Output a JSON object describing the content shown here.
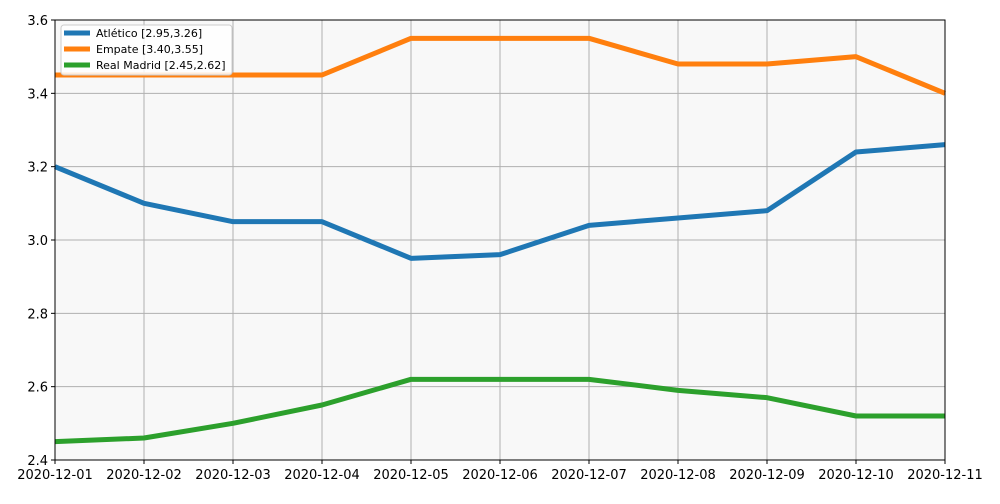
{
  "chart_data": {
    "type": "line",
    "title": "",
    "xlabel": "",
    "ylabel": "",
    "x": [
      "2020-12-01",
      "2020-12-02",
      "2020-12-03",
      "2020-12-04",
      "2020-12-05",
      "2020-12-06",
      "2020-12-07",
      "2020-12-08",
      "2020-12-09",
      "2020-12-10",
      "2020-12-11"
    ],
    "ylim": [
      2.4,
      3.6
    ],
    "yticks": [
      "2.4",
      "2.6",
      "2.8",
      "3.0",
      "3.2",
      "3.4",
      "3.6"
    ],
    "grid": true,
    "legend_position": "top-left",
    "background": "#f8f8f8",
    "series": [
      {
        "name": "Atlético [2.95,3.26]",
        "color": "#1f77b4",
        "values": [
          3.2,
          3.1,
          3.05,
          3.05,
          2.95,
          2.96,
          3.04,
          3.06,
          3.08,
          3.24,
          3.26
        ]
      },
      {
        "name": "Empate [3.40,3.55]",
        "color": "#ff7f0e",
        "values": [
          3.45,
          3.45,
          3.45,
          3.45,
          3.55,
          3.55,
          3.55,
          3.48,
          3.48,
          3.5,
          3.4
        ]
      },
      {
        "name": "Real Madrid [2.45,2.62]",
        "color": "#2ca02c",
        "values": [
          2.45,
          2.46,
          2.5,
          2.55,
          2.62,
          2.62,
          2.62,
          2.59,
          2.57,
          2.52,
          2.52
        ]
      }
    ]
  }
}
